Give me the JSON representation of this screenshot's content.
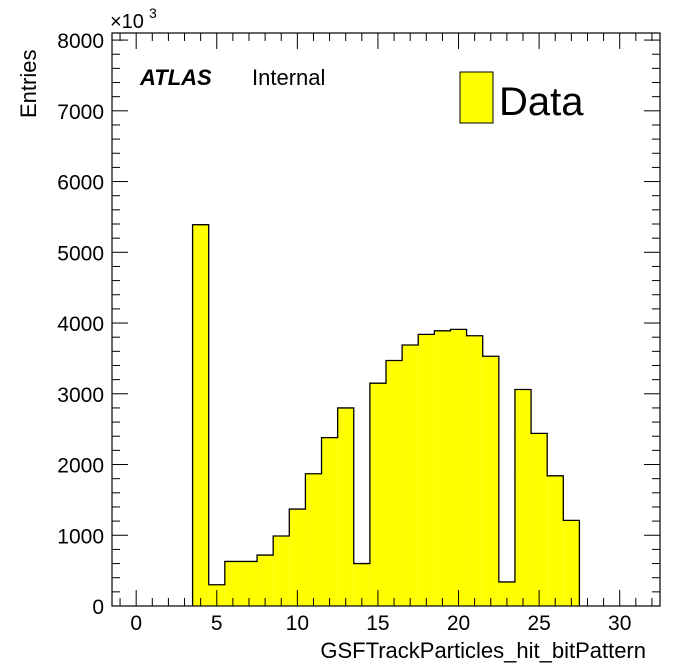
{
  "chart_data": {
    "type": "bar",
    "histogram": true,
    "xlabel": "GSFTrackParticles_hit_bitPattern",
    "ylabel": "Entries",
    "y_multiplier": {
      "base": "×10",
      "exponent": "3"
    },
    "xlim": [
      -1.5,
      32.5
    ],
    "ylim": [
      0,
      8100
    ],
    "x_ticks": [
      0,
      5,
      10,
      15,
      20,
      25,
      30
    ],
    "y_ticks": [
      0,
      1000,
      2000,
      3000,
      4000,
      5000,
      6000,
      7000,
      8000
    ],
    "bin_width": 1,
    "bin_centers": [
      4,
      5,
      6,
      7,
      8,
      9,
      10,
      11,
      12,
      13,
      14,
      15,
      16,
      17,
      18,
      19,
      20,
      21,
      22,
      23,
      24,
      25,
      26,
      27
    ],
    "values": [
      5390,
      300,
      630,
      630,
      720,
      990,
      1370,
      1870,
      2380,
      2800,
      600,
      3150,
      3470,
      3690,
      3840,
      3890,
      3910,
      3820,
      3530,
      340,
      3060,
      2440,
      1840,
      1210
    ],
    "series": [
      {
        "name": "Data",
        "color": "#ffff00"
      }
    ],
    "legend_position": "top-right",
    "grid": false
  },
  "label": {
    "bold": "ATLAS",
    "normal": "Internal"
  },
  "colors": {
    "fill": "#ffff00",
    "stroke": "#000000",
    "frame": "#000000"
  }
}
